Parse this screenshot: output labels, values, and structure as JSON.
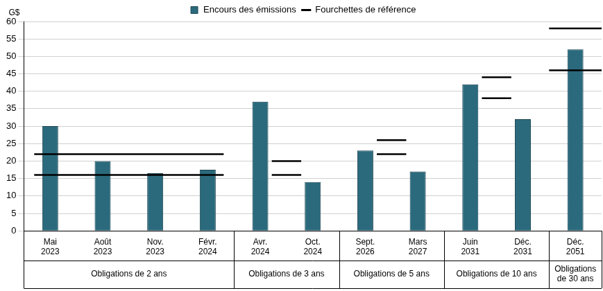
{
  "chart_data": {
    "type": "bar",
    "y_label": "G$",
    "categories": [
      "Mai 2023",
      "Août 2023",
      "Nov. 2023",
      "Févr. 2024",
      "Avr. 2024",
      "Oct. 2024",
      "Sept. 2026",
      "Mars 2027",
      "Juin 2031",
      "Déc. 2031",
      "Déc. 2051"
    ],
    "series": [
      {
        "name": "Encours des émissions",
        "color": "#2b6a7c",
        "values": [
          30,
          20,
          16.5,
          17.5,
          37,
          14,
          23,
          17,
          42,
          32,
          52
        ]
      }
    ],
    "reference_ranges": {
      "name": "Fourchettes de référence",
      "color": "#000000",
      "groups": [
        {
          "label": "Obligations de 2 ans",
          "categories": [
            "Mai 2023",
            "Août 2023",
            "Nov. 2023",
            "Févr. 2024"
          ],
          "range": [
            16,
            22
          ]
        },
        {
          "label": "Obligations de 3 ans",
          "categories": [
            "Avr. 2024",
            "Oct. 2024"
          ],
          "range": [
            16,
            20
          ]
        },
        {
          "label": "Obligations de 5 ans",
          "categories": [
            "Sept. 2026",
            "Mars 2027"
          ],
          "range": [
            22,
            26
          ]
        },
        {
          "label": "Obligations de 10 ans",
          "categories": [
            "Juin 2031",
            "Déc. 2031"
          ],
          "range": [
            38,
            44
          ]
        },
        {
          "label": "Obligations de 30 ans",
          "categories": [
            "Déc. 2051"
          ],
          "range": [
            46,
            58
          ]
        }
      ]
    },
    "ylim": [
      0,
      60
    ],
    "yticks": [
      0,
      5,
      10,
      15,
      20,
      25,
      30,
      35,
      40,
      45,
      50,
      55,
      60
    ],
    "grid": true,
    "legend": "top"
  }
}
